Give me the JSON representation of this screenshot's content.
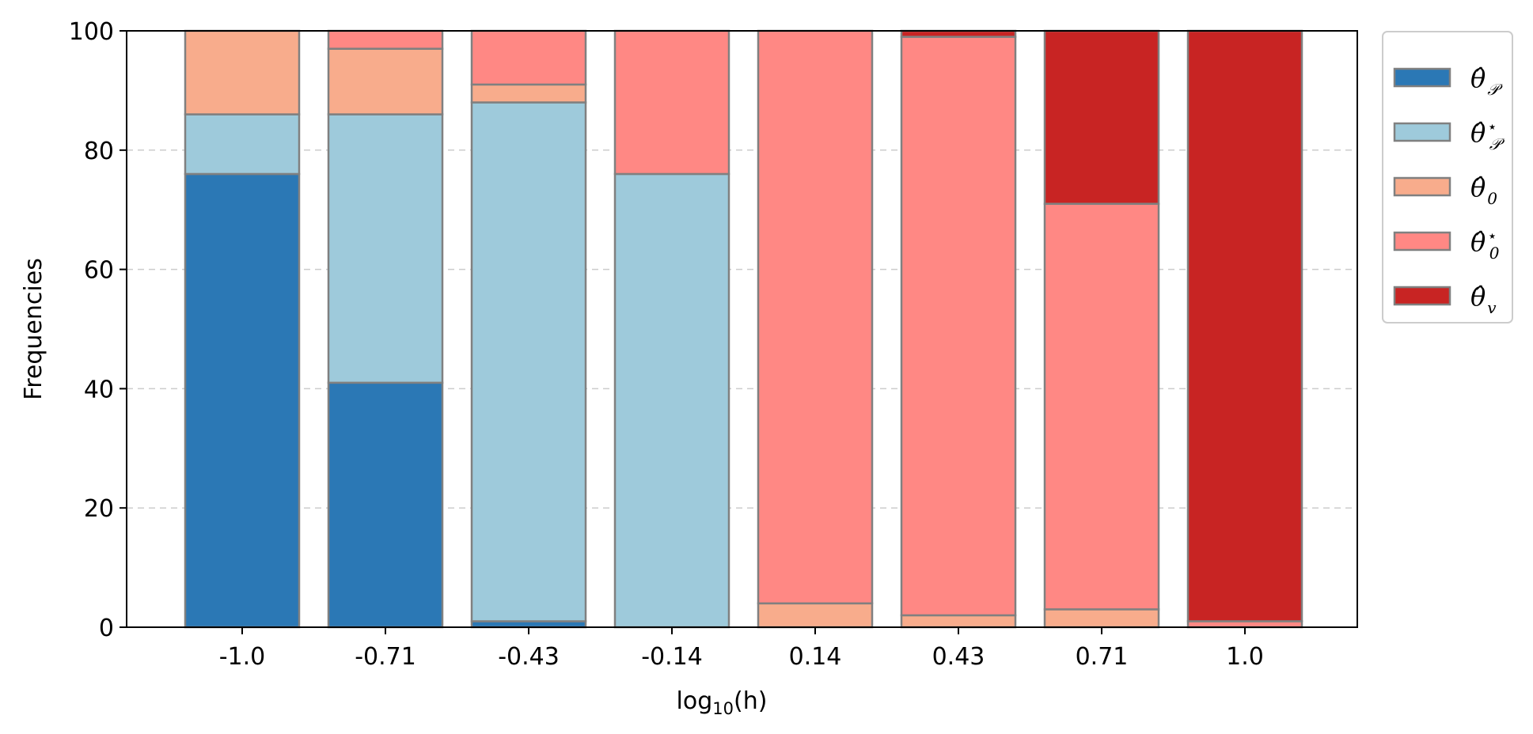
{
  "chart_data": {
    "type": "bar",
    "stacked": true,
    "title": "",
    "xlabel": "log10(h)",
    "xlabel_parts": {
      "base": "log",
      "sub": "10",
      "arg": "(h)"
    },
    "ylabel": "Frequencies",
    "ylim": [
      0,
      100
    ],
    "yticks": [
      "0",
      "20",
      "40",
      "60",
      "80",
      "100"
    ],
    "grid": "y-dashed",
    "legend_position": "outside-right-top",
    "categories": [
      "-1.0",
      "-0.71",
      "-0.43",
      "-0.14",
      "0.14",
      "0.43",
      "0.71",
      "1.0"
    ],
    "series": [
      {
        "name": "θ̂_P",
        "legend": {
          "base": "θ̂",
          "sub": "𝒫",
          "sup": ""
        },
        "color": "#2b78b5",
        "values": [
          76,
          41,
          1,
          0,
          0,
          0,
          0,
          0
        ]
      },
      {
        "name": "θ̂*_P",
        "legend": {
          "base": "θ̂",
          "sub": "𝒫",
          "sup": "⋆"
        },
        "color": "#9ecadb",
        "values": [
          10,
          45,
          87,
          76,
          0,
          0,
          0,
          0
        ]
      },
      {
        "name": "θ̂_0",
        "legend": {
          "base": "θ̂",
          "sub": "0",
          "sup": ""
        },
        "color": "#f8ac8c",
        "values": [
          14,
          11,
          3,
          0,
          4,
          2,
          3,
          0
        ]
      },
      {
        "name": "θ̂*_0",
        "legend": {
          "base": "θ̂",
          "sub": "0",
          "sup": "⋆"
        },
        "color": "#ff8884",
        "values": [
          0,
          3,
          9,
          24,
          96,
          97,
          68,
          1
        ]
      },
      {
        "name": "θ̂_v",
        "legend": {
          "base": "θ̂",
          "sub": "v",
          "sup": ""
        },
        "color": "#c82423",
        "values": [
          0,
          0,
          0,
          0,
          0,
          1,
          29,
          99
        ]
      }
    ],
    "edge_color": "#808080"
  }
}
